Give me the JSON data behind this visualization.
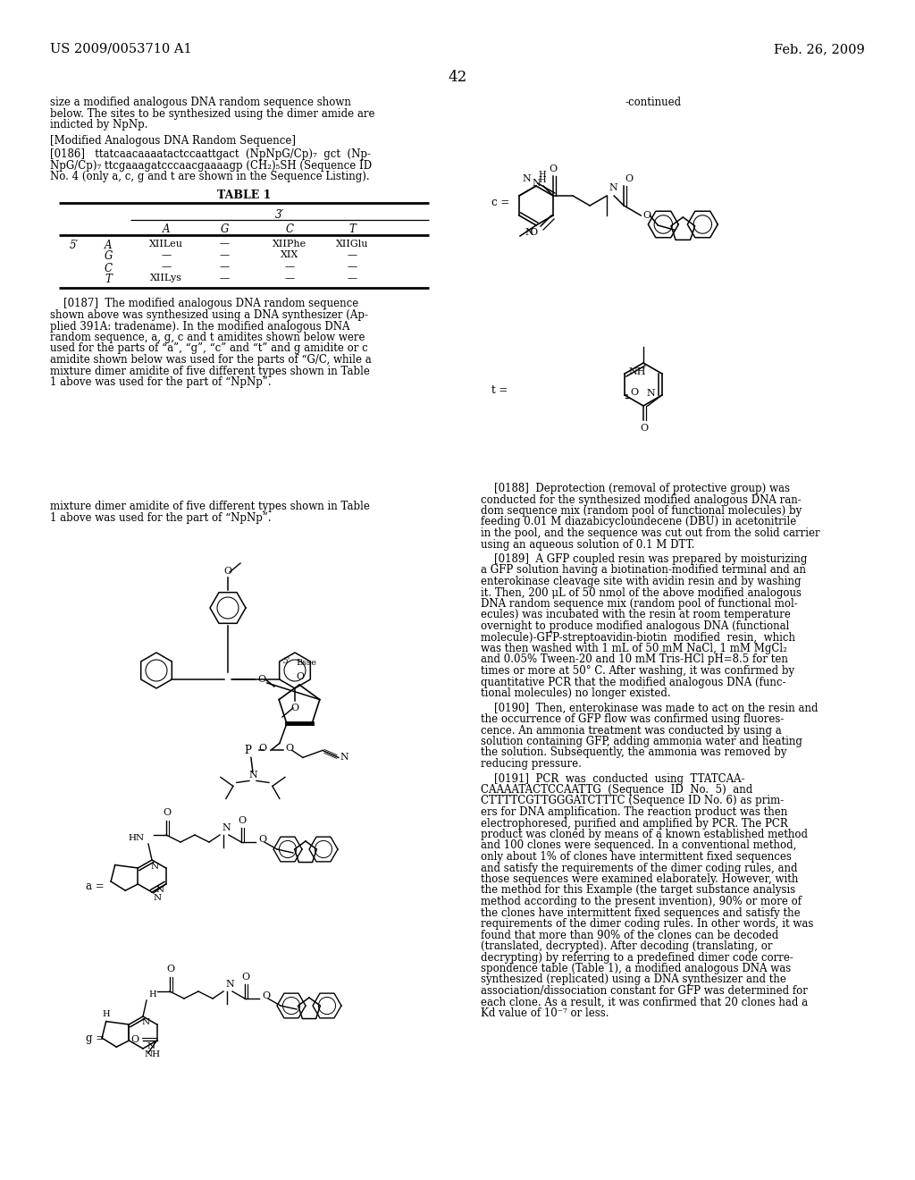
{
  "background_color": "#ffffff",
  "text_color": "#000000",
  "header_left": "US 2009/0053710 A1",
  "header_right": "Feb. 26, 2009",
  "page_number": "42",
  "body_fs": 8.5,
  "header_fs": 10.5,
  "continued_label": "-continued",
  "left_col_lines_1": [
    "size a modified analogous DNA random sequence shown",
    "below. The sites to be synthesized using the dimer amide are",
    "indicted by NpNp."
  ],
  "modified_seq_label": "[Modified Analogous DNA Random Sequence]",
  "p186_lines": [
    "[0186]   ttatcaacaaaatactccaattgact  (NpNpG/Cp)₇  gct  (Np-",
    "NpG/Cp)₇ ttcgaaagatcccaacgaaaagp (CH₂)₅SH (Sequence ID",
    "No. 4 (only a, c, g and t are shown in the Sequence Listing)."
  ],
  "table_title": "TABLE 1",
  "col_3prime": "3′",
  "col_5prime": "5′",
  "col_headers": [
    "A",
    "G",
    "C",
    "T"
  ],
  "row_labels": [
    "A",
    "G",
    "C",
    "T"
  ],
  "table_data": [
    [
      "XIILeu",
      "—",
      "XIIPhe",
      "XIIGlu"
    ],
    [
      "—",
      "—",
      "XIX",
      "—"
    ],
    [
      "—",
      "—",
      "—",
      "—"
    ],
    [
      "XIILys",
      "—",
      "—",
      "—"
    ]
  ],
  "p187_lines": [
    "    [0187]  The modified analogous DNA random sequence",
    "shown above was synthesized using a DNA synthesizer (Ap-",
    "plied 391A: tradename). In the modified analogous DNA",
    "random sequence, a, g, c and t amidites shown below were",
    "used for the parts of “a”, “g”, “c” and “t” and g amidite or c",
    "amidite shown below was used for the parts of “G/C, while a",
    "mixture dimer amidite of five different types shown in Table",
    "1 above was used for the part of “NpNp”."
  ],
  "p187b_lines": [
    "mixture dimer amidite of five different types shown in Table",
    "1 above was used for the part of “NpNp”."
  ],
  "p188_lines": [
    "    [0188]  Deprotection (removal of protective group) was",
    "conducted for the synthesized modified analogous DNA ran-",
    "dom sequence mix (random pool of functional molecules) by",
    "feeding 0.01 M diazabicycloundecene (DBU) in acetonitrile",
    "in the pool, and the sequence was cut out from the solid carrier",
    "using an aqueous solution of 0.1 M DTT."
  ],
  "p189_lines": [
    "    [0189]  A GFP coupled resin was prepared by moisturizing",
    "a GFP solution having a biotination-modified terminal and an",
    "enterokinase cleavage site with avidin resin and by washing",
    "it. Then, 200 μL of 50 nmol of the above modified analogous",
    "DNA random sequence mix (random pool of functional mol-",
    "ecules) was incubated with the resin at room temperature",
    "overnight to produce modified analogous DNA (functional",
    "molecule)-GFP-streptoavidin-biotin  modified  resin,  which",
    "was then washed with 1 mL of 50 mM NaCl, 1 mM MgCl₂",
    "and 0.05% Tween-20 and 10 mM Tris-HCl pH=8.5 for ten",
    "times or more at 50° C. After washing, it was confirmed by",
    "quantitative PCR that the modified analogous DNA (func-",
    "tional molecules) no longer existed."
  ],
  "p190_lines": [
    "    [0190]  Then, enterokinase was made to act on the resin and",
    "the occurrence of GFP flow was confirmed using fluores-",
    "cence. An ammonia treatment was conducted by using a",
    "solution containing GFP, adding ammonia water and heating",
    "the solution. Subsequently, the ammonia was removed by",
    "reducing pressure."
  ],
  "p191_lines": [
    "    [0191]  PCR  was  conducted  using  TTATCAA-",
    "CAAAATACTCCAATTG  (Sequence  ID  No.  5)  and",
    "CTTTTCGTTGGGATCTTTC (Sequence ID No. 6) as prim-",
    "ers for DNA amplification. The reaction product was then",
    "electrophoresed, purified and amplified by PCR. The PCR",
    "product was cloned by means of a known established method",
    "and 100 clones were sequenced. In a conventional method,",
    "only about 1% of clones have intermittent fixed sequences",
    "and satisfy the requirements of the dimer coding rules, and",
    "those sequences were examined elaborately. However, with",
    "the method for this Example (the target substance analysis",
    "method according to the present invention), 90% or more of",
    "the clones have intermittent fixed sequences and satisfy the",
    "requirements of the dimer coding rules. In other words, it was",
    "found that more than 90% of the clones can be decoded",
    "(translated, decrypted). After decoding (translating, or",
    "decrypting) by referring to a predefined dimer code corre-",
    "spondence table (Table 1), a modified analogous DNA was",
    "synthesized (replicated) using a DNA synthesizer and the",
    "association/dissociation constant for GFP was determined for",
    "each clone. As a result, it was confirmed that 20 clones had a",
    "Kd value of 10⁻⁷ or less."
  ]
}
